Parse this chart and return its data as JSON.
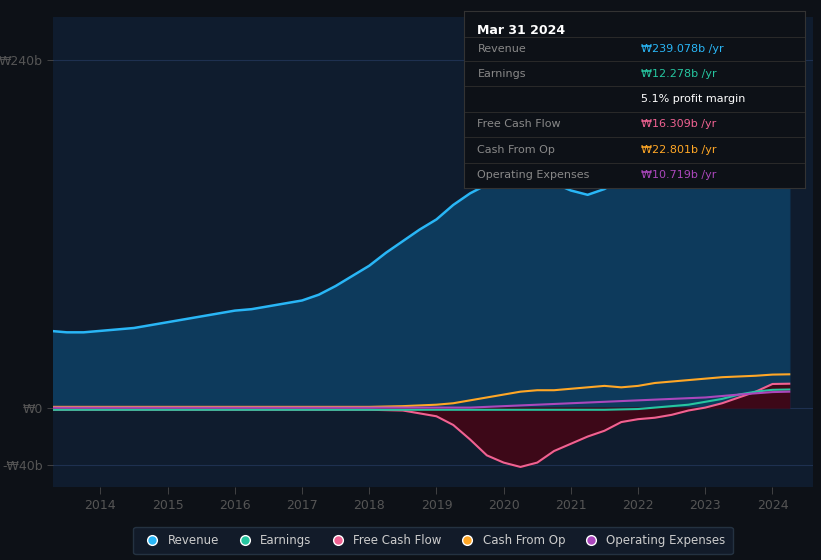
{
  "background_color": "#0d1117",
  "plot_bg_color": "#0f1c2e",
  "ylim": [
    -55,
    270
  ],
  "ytick_vals": [
    -40,
    0,
    240
  ],
  "ytick_labels": [
    "-₩40b",
    "₩0",
    "₩240b"
  ],
  "xlim": [
    2013.3,
    2024.6
  ],
  "xticks": [
    2014,
    2015,
    2016,
    2017,
    2018,
    2019,
    2020,
    2021,
    2022,
    2023,
    2024
  ],
  "grid_color": "#1e3050",
  "legend_items": [
    "Revenue",
    "Earnings",
    "Free Cash Flow",
    "Cash From Op",
    "Operating Expenses"
  ],
  "legend_colors": [
    "#29b6f6",
    "#26c6a0",
    "#f06292",
    "#ffa726",
    "#ab47bc"
  ],
  "tooltip": {
    "date": "Mar 31 2024",
    "rows": [
      {
        "label": "Revenue",
        "value": "₩239.078b /yr",
        "value_color": "#29b6f6"
      },
      {
        "label": "Earnings",
        "value": "₩12.278b /yr",
        "value_color": "#26c6a0"
      },
      {
        "label": "",
        "value": "5.1% profit margin",
        "value_color": "#ffffff"
      },
      {
        "label": "Free Cash Flow",
        "value": "₩16.309b /yr",
        "value_color": "#f06292"
      },
      {
        "label": "Cash From Op",
        "value": "₩22.801b /yr",
        "value_color": "#ffa726"
      },
      {
        "label": "Operating Expenses",
        "value": "₩10.719b /yr",
        "value_color": "#ab47bc"
      }
    ]
  },
  "revenue": {
    "x": [
      2013.25,
      2013.5,
      2013.75,
      2014.0,
      2014.25,
      2014.5,
      2014.75,
      2015.0,
      2015.25,
      2015.5,
      2015.75,
      2016.0,
      2016.25,
      2016.5,
      2016.75,
      2017.0,
      2017.25,
      2017.5,
      2017.75,
      2018.0,
      2018.25,
      2018.5,
      2018.75,
      2019.0,
      2019.25,
      2019.5,
      2019.75,
      2020.0,
      2020.25,
      2020.5,
      2020.75,
      2021.0,
      2021.25,
      2021.5,
      2021.75,
      2022.0,
      2022.25,
      2022.5,
      2022.75,
      2023.0,
      2023.25,
      2023.5,
      2023.75,
      2024.0,
      2024.25
    ],
    "y": [
      53,
      52,
      52,
      53,
      54,
      55,
      57,
      59,
      61,
      63,
      65,
      67,
      68,
      70,
      72,
      74,
      78,
      84,
      91,
      98,
      107,
      115,
      123,
      130,
      140,
      148,
      154,
      157,
      162,
      159,
      155,
      150,
      147,
      151,
      158,
      164,
      175,
      187,
      197,
      207,
      217,
      226,
      233,
      239,
      240
    ]
  },
  "earnings": {
    "x": [
      2013.25,
      2014.0,
      2015.0,
      2016.0,
      2017.0,
      2018.0,
      2019.0,
      2019.5,
      2020.0,
      2020.5,
      2021.0,
      2021.5,
      2022.0,
      2022.25,
      2022.5,
      2022.75,
      2023.0,
      2023.25,
      2023.5,
      2023.75,
      2024.0,
      2024.25
    ],
    "y": [
      -1.5,
      -1.5,
      -1.5,
      -1.5,
      -1.5,
      -1.5,
      -1.5,
      -1.5,
      -1.5,
      -1.5,
      -1.5,
      -1.5,
      -1,
      0,
      1,
      2,
      4,
      6,
      9,
      11,
      12.278,
      12.5
    ]
  },
  "free_cash_flow": {
    "x": [
      2013.25,
      2014.0,
      2015.0,
      2016.0,
      2017.0,
      2018.0,
      2018.5,
      2019.0,
      2019.25,
      2019.5,
      2019.75,
      2020.0,
      2020.25,
      2020.5,
      2020.75,
      2021.0,
      2021.25,
      2021.5,
      2021.75,
      2022.0,
      2022.25,
      2022.5,
      2022.75,
      2023.0,
      2023.25,
      2023.5,
      2023.75,
      2024.0,
      2024.25
    ],
    "y": [
      -1.5,
      -1.5,
      -1.5,
      -1.5,
      -1.5,
      -1.5,
      -2,
      -6,
      -12,
      -22,
      -33,
      -38,
      -41,
      -38,
      -30,
      -25,
      -20,
      -16,
      -10,
      -8,
      -7,
      -5,
      -2,
      0,
      3,
      7,
      11,
      16.309,
      16.5
    ]
  },
  "cash_from_op": {
    "x": [
      2013.25,
      2014.0,
      2015.0,
      2016.0,
      2017.0,
      2018.0,
      2018.5,
      2019.0,
      2019.25,
      2019.5,
      2019.75,
      2020.0,
      2020.25,
      2020.5,
      2020.75,
      2021.0,
      2021.25,
      2021.5,
      2021.75,
      2022.0,
      2022.25,
      2022.5,
      2022.75,
      2023.0,
      2023.25,
      2023.5,
      2023.75,
      2024.0,
      2024.25
    ],
    "y": [
      0.5,
      0.5,
      0.5,
      0.5,
      0.5,
      0.5,
      1,
      2,
      3,
      5,
      7,
      9,
      11,
      12,
      12,
      13,
      14,
      15,
      14,
      15,
      17,
      18,
      19,
      20,
      21,
      21.5,
      22,
      22.801,
      23
    ]
  },
  "operating_expenses": {
    "x": [
      2013.25,
      2014.0,
      2015.0,
      2016.0,
      2017.0,
      2018.0,
      2018.5,
      2019.0,
      2019.5,
      2020.0,
      2020.5,
      2021.0,
      2021.5,
      2022.0,
      2022.5,
      2023.0,
      2023.5,
      2024.0,
      2024.25
    ],
    "y": [
      0,
      0,
      0,
      0,
      0,
      0,
      0,
      0,
      0,
      1,
      2,
      3,
      4,
      5,
      6,
      7,
      9,
      10.719,
      11
    ]
  },
  "revenue_color": "#29b6f6",
  "revenue_fill_color": "#0d3a5c",
  "earnings_color": "#26c6a0",
  "free_cash_flow_color": "#f06292",
  "free_cash_flow_fill_color": "#3d0818",
  "cash_from_op_color": "#ffa726",
  "operating_expenses_color": "#ab47bc"
}
